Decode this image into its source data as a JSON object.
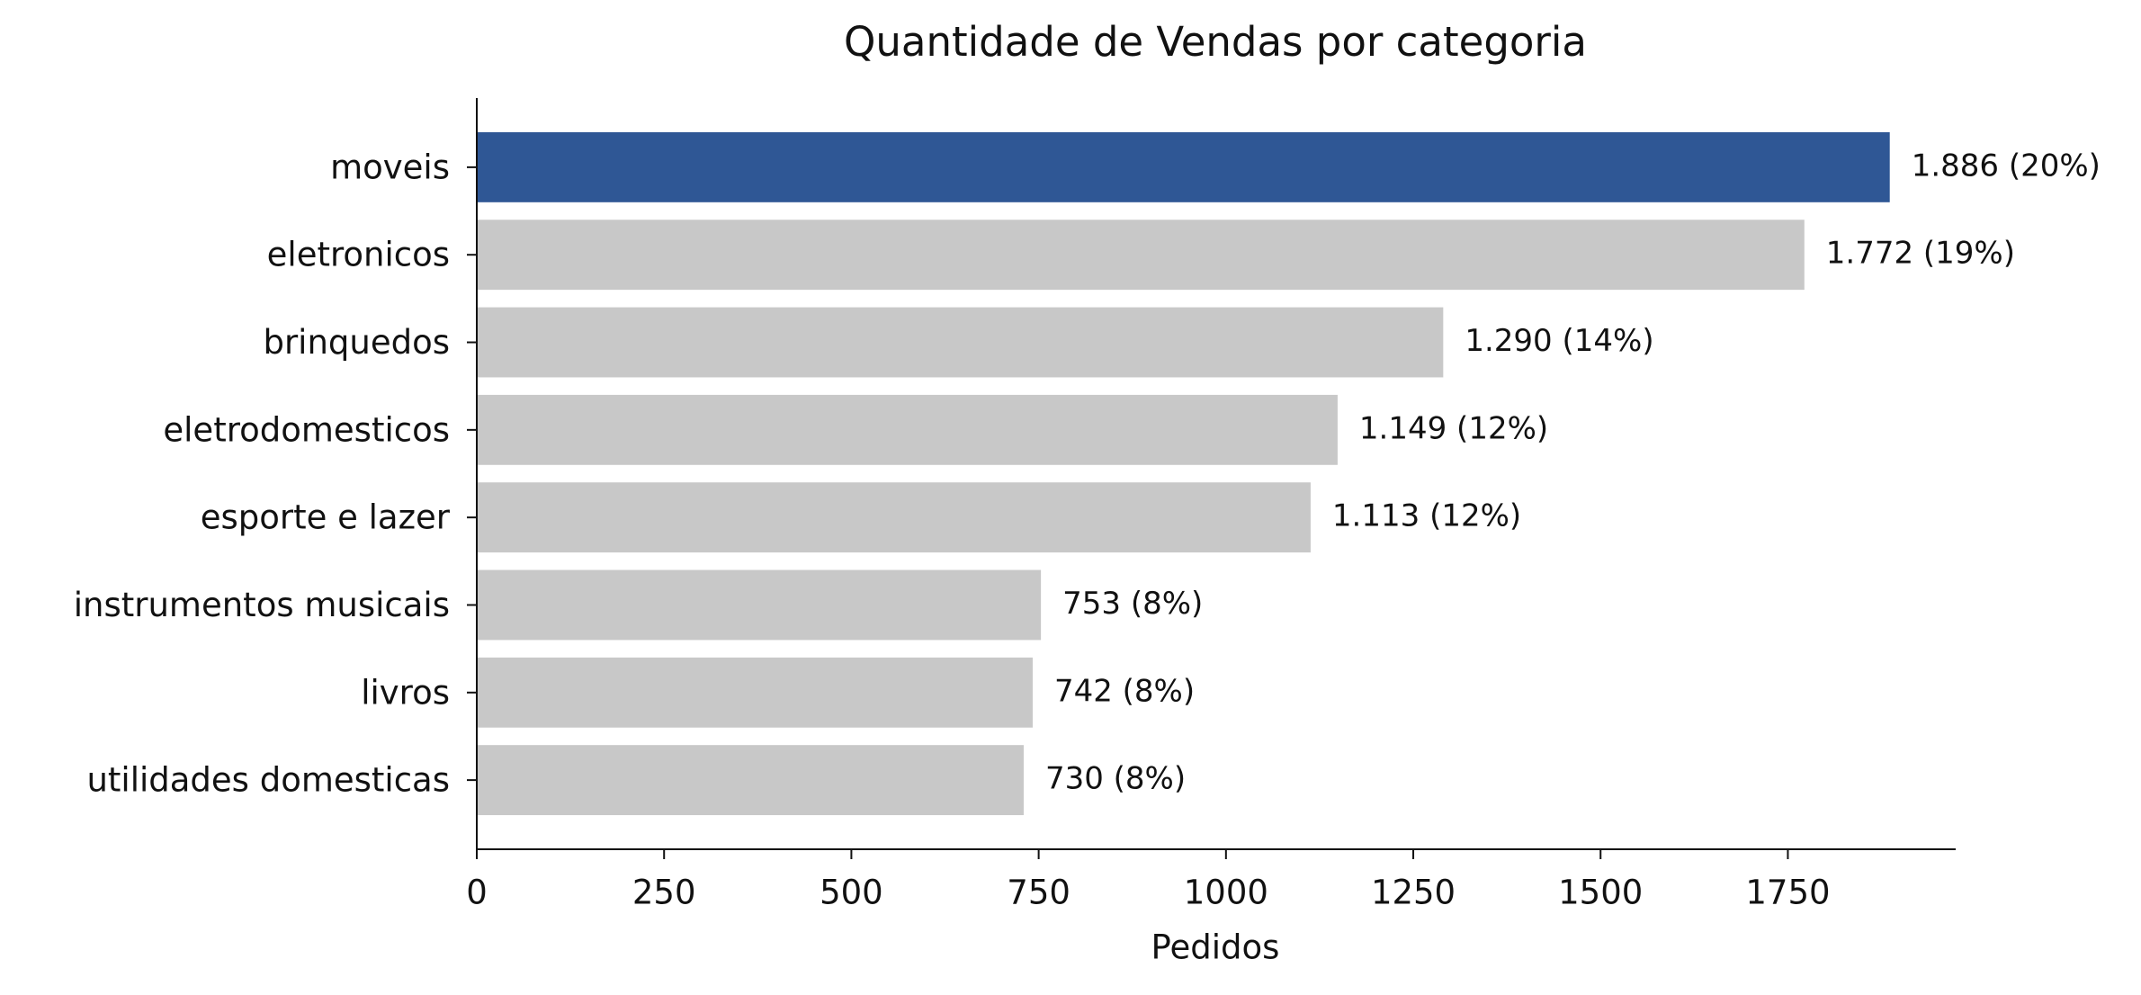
{
  "chart_data": {
    "type": "barh",
    "title": "Quantidade de Vendas por categoria",
    "x_label": "Pedidos",
    "categories": [
      "moveis",
      "eletronicos",
      "brinquedos",
      "eletrodomesticos",
      "esporte e lazer",
      "instrumentos musicais",
      "livros",
      "utilidades domesticas"
    ],
    "values": [
      1886,
      1772,
      1290,
      1149,
      1113,
      753,
      742,
      730
    ],
    "value_labels": [
      "1.886 (20%)",
      "1.772 (19%)",
      "1.290 (14%)",
      "1.149 (12%)",
      "1.113 (12%)",
      "753 (8%)",
      "742 (8%)",
      "730 (8%)"
    ],
    "colors": [
      "#2f5795",
      "#c8c8c8",
      "#c8c8c8",
      "#c8c8c8",
      "#c8c8c8",
      "#c8c8c8",
      "#c8c8c8",
      "#c8c8c8"
    ],
    "xlim": [
      0,
      1974
    ],
    "xticks": [
      0,
      250,
      500,
      750,
      1000,
      1250,
      1500,
      1750
    ],
    "grid": false
  }
}
